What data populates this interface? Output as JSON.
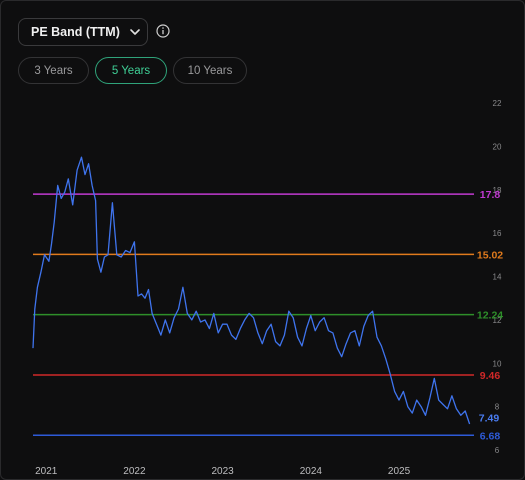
{
  "header": {
    "dropdown_label": "PE Band (TTM)",
    "dropdown_icon": "chevron-down-icon",
    "info_icon": "info-icon"
  },
  "tabs": [
    {
      "label": "3 Years",
      "active": false
    },
    {
      "label": "5 Years",
      "active": true
    },
    {
      "label": "10 Years",
      "active": false
    }
  ],
  "chart_data": {
    "type": "line",
    "title": "",
    "xlabel": "",
    "ylabel": "",
    "y_ticks": [
      6,
      8,
      10,
      12,
      14,
      16,
      18,
      20,
      22
    ],
    "ylim": [
      6,
      22
    ],
    "x_ticks": [
      "2021",
      "2022",
      "2023",
      "2024",
      "2025"
    ],
    "xlim": [
      2020.85,
      2025.85
    ],
    "grid": false,
    "bands": [
      {
        "value": 17.8,
        "label": "17.8",
        "color": "#c03ad1"
      },
      {
        "value": 15.02,
        "label": "15.02",
        "color": "#e07a1c"
      },
      {
        "value": 12.24,
        "label": "12.24",
        "color": "#2e8f2a"
      },
      {
        "value": 9.46,
        "label": "9.46",
        "color": "#d12828"
      },
      {
        "value": 6.68,
        "label": "6.68",
        "color": "#2d5ad8"
      }
    ],
    "current": {
      "value": 7.49,
      "label": "7.49",
      "color": "#4a7cf0"
    },
    "series": [
      {
        "color": "#3f74ee",
        "x": [
          2020.85,
          2020.87,
          2020.9,
          2020.94,
          2020.98,
          2021.03,
          2021.06,
          2021.09,
          2021.13,
          2021.17,
          2021.21,
          2021.25,
          2021.3,
          2021.35,
          2021.4,
          2021.44,
          2021.48,
          2021.52,
          2021.56,
          2021.58,
          2021.62,
          2021.66,
          2021.7,
          2021.75,
          2021.8,
          2021.85,
          2021.9,
          2021.95,
          2022.0,
          2022.04,
          2022.08,
          2022.12,
          2022.16,
          2022.2,
          2022.25,
          2022.3,
          2022.35,
          2022.4,
          2022.45,
          2022.5,
          2022.55,
          2022.6,
          2022.65,
          2022.7,
          2022.75,
          2022.8,
          2022.85,
          2022.9,
          2022.95,
          2023.0,
          2023.05,
          2023.1,
          2023.15,
          2023.2,
          2023.25,
          2023.3,
          2023.35,
          2023.4,
          2023.45,
          2023.5,
          2023.55,
          2023.6,
          2023.65,
          2023.7,
          2023.75,
          2023.8,
          2023.85,
          2023.9,
          2023.95,
          2024.0,
          2024.05,
          2024.1,
          2024.15,
          2024.2,
          2024.25,
          2024.3,
          2024.35,
          2024.4,
          2024.45,
          2024.5,
          2024.55,
          2024.6,
          2024.65,
          2024.7,
          2024.75,
          2024.8,
          2024.85,
          2024.9,
          2024.95,
          2025.0,
          2025.05,
          2025.1,
          2025.15,
          2025.2,
          2025.25,
          2025.3,
          2025.35,
          2025.4,
          2025.45,
          2025.5,
          2025.55,
          2025.6,
          2025.65,
          2025.7,
          2025.75,
          2025.8
        ],
        "y": [
          10.7,
          12.5,
          13.5,
          14.2,
          15.0,
          14.7,
          15.5,
          16.5,
          18.2,
          17.6,
          17.9,
          18.5,
          17.3,
          18.9,
          19.5,
          18.7,
          19.2,
          18.2,
          17.5,
          14.8,
          14.2,
          14.9,
          15.0,
          17.4,
          15.0,
          14.9,
          15.2,
          15.1,
          15.6,
          13.1,
          13.2,
          13.0,
          13.4,
          12.3,
          11.8,
          11.3,
          12.0,
          11.4,
          12.1,
          12.5,
          13.5,
          12.3,
          12.0,
          12.4,
          11.9,
          12.0,
          11.6,
          12.3,
          11.4,
          11.8,
          11.8,
          11.3,
          11.1,
          11.6,
          12.0,
          12.3,
          12.1,
          11.4,
          10.9,
          11.5,
          11.8,
          11.0,
          10.8,
          11.3,
          12.4,
          12.1,
          11.2,
          10.8,
          11.6,
          12.2,
          11.5,
          11.9,
          12.1,
          11.5,
          11.4,
          10.7,
          10.3,
          10.9,
          11.4,
          11.5,
          10.8,
          11.7,
          12.2,
          12.4,
          11.2,
          10.8,
          10.2,
          9.5,
          8.7,
          8.3,
          8.7,
          8.0,
          7.7,
          8.3,
          8.0,
          7.6,
          8.4,
          9.3,
          8.3,
          8.1,
          7.9,
          8.5,
          7.9,
          7.6,
          7.8,
          7.2
        ]
      }
    ]
  }
}
